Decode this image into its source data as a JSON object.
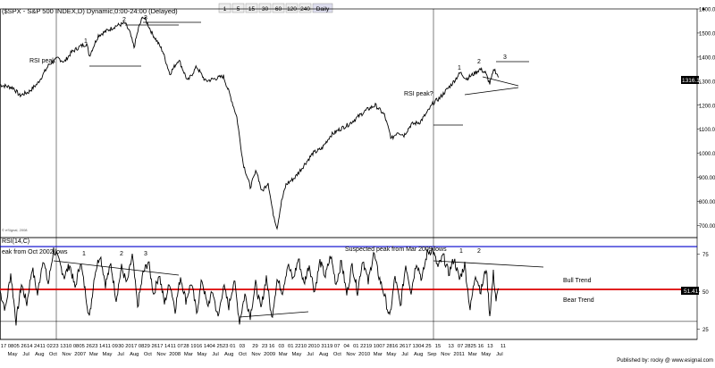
{
  "toolbar": {
    "symbol_text": "($SPX - S&P 500 INDEX,D) Dynamic,0:00-24:00 (Delayed)",
    "buttons": [
      "1",
      "5",
      "15",
      "30",
      "60",
      "120",
      "240",
      "Daily"
    ],
    "active_button": "Daily"
  },
  "watermark": "© eSignal, 2008",
  "footer": "Published by: rocky @ www.esignal.com",
  "rsi_label": "RSI(14,C)",
  "rsi_value_badge": "51.41",
  "price_badge": "1316.14",
  "annotations": {
    "rsi_peak_left": "RSI peak",
    "rsi_peak_right": "RSI peak?",
    "suspected_peak": "Suspected peak from Mar 2009 lows",
    "peak_from_2002": "eak from Oct 2002 lows",
    "bull_trend": "Bull Trend",
    "bear_trend": "Bear Trend",
    "wave_labels": [
      "1",
      "2",
      "3",
      "1",
      "2",
      "3"
    ],
    "rsi_wave_labels": [
      "1",
      "2",
      "3",
      "1",
      "2"
    ]
  },
  "colors": {
    "background": "#ffffff",
    "price_line": "#000000",
    "rsi_line": "#000000",
    "upper_band": "#0000cc",
    "mid_band": "#dd0000",
    "badge_bg": "#000000",
    "badge_text": "#ffffff"
  },
  "chart_data": [
    {
      "type": "line",
      "title": "$SPX - S&P 500 INDEX",
      "y_axis_position": "right",
      "ylim": [
        650,
        1600
      ],
      "y_ticks": [
        700,
        800,
        900,
        1000,
        1100,
        1200,
        1300,
        1400,
        1500,
        1600
      ],
      "y_tick_labels": [
        "700.00",
        "800.00",
        "900.00",
        "1000.00",
        "1100.00",
        "1200.00",
        "1300.00",
        "1400.00",
        "1500.00",
        "1600.00"
      ],
      "xlim": [
        0,
        780
      ],
      "points": [
        [
          0,
          1285
        ],
        [
          15,
          1272
        ],
        [
          22,
          1240
        ],
        [
          32,
          1255
        ],
        [
          42,
          1290
        ],
        [
          55,
          1370
        ],
        [
          65,
          1395
        ],
        [
          72,
          1380
        ],
        [
          80,
          1420
        ],
        [
          90,
          1445
        ],
        [
          97,
          1455
        ],
        [
          100,
          1405
        ],
        [
          110,
          1490
        ],
        [
          120,
          1510
        ],
        [
          130,
          1530
        ],
        [
          140,
          1540
        ],
        [
          145,
          1505
        ],
        [
          150,
          1440
        ],
        [
          155,
          1520
        ],
        [
          160,
          1570
        ],
        [
          165,
          1540
        ],
        [
          170,
          1500
        ],
        [
          175,
          1470
        ],
        [
          182,
          1425
        ],
        [
          190,
          1330
        ],
        [
          200,
          1390
        ],
        [
          210,
          1300
        ],
        [
          220,
          1360
        ],
        [
          230,
          1300
        ],
        [
          240,
          1310
        ],
        [
          250,
          1320
        ],
        [
          258,
          1235
        ],
        [
          265,
          1150
        ],
        [
          272,
          960
        ],
        [
          280,
          860
        ],
        [
          287,
          930
        ],
        [
          293,
          840
        ],
        [
          300,
          880
        ],
        [
          305,
          760
        ],
        [
          310,
          690
        ],
        [
          315,
          800
        ],
        [
          320,
          870
        ],
        [
          330,
          900
        ],
        [
          340,
          950
        ],
        [
          350,
          1000
        ],
        [
          360,
          1020
        ],
        [
          370,
          1075
        ],
        [
          380,
          1100
        ],
        [
          390,
          1120
        ],
        [
          400,
          1150
        ],
        [
          410,
          1180
        ],
        [
          420,
          1200
        ],
        [
          430,
          1160
        ],
        [
          438,
          1060
        ],
        [
          445,
          1090
        ],
        [
          452,
          1075
        ],
        [
          460,
          1120
        ],
        [
          470,
          1130
        ],
        [
          478,
          1170
        ],
        [
          485,
          1210
        ],
        [
          492,
          1230
        ],
        [
          500,
          1265
        ],
        [
          507,
          1295
        ],
        [
          515,
          1335
        ],
        [
          522,
          1310
        ],
        [
          530,
          1330
        ],
        [
          537,
          1350
        ],
        [
          543,
          1335
        ],
        [
          548,
          1290
        ],
        [
          553,
          1350
        ],
        [
          558,
          1316
        ]
      ],
      "x_tick_labels": [
        "17 08",
        "05 26",
        "14 24",
        "11 02",
        "23 13",
        "10 08",
        "05 26",
        "23 14",
        "11 09",
        "30 20",
        "17 08",
        "29 26",
        "17 14",
        "11 07",
        "28 19",
        "16 14",
        "04 25",
        "23 01",
        "03",
        "29",
        "23 16",
        "03",
        "01 22",
        "10 20",
        "10 31",
        "19 07",
        "04",
        "01 22",
        "19 10",
        "07 28",
        "16 26",
        "17 13",
        "04 25",
        "15",
        "13",
        "07 28",
        "25 16",
        "13",
        "11"
      ],
      "x_period_labels": [
        "May",
        "Jul",
        "Aug",
        "Oct",
        "Nov",
        "2007",
        "Mar",
        "May",
        "Jul",
        "Aug",
        "Oct",
        "Nov",
        "2008",
        "Mar",
        "May",
        "Jul",
        "Aug",
        "Oct",
        "Nov",
        "2009",
        "Mar",
        "May",
        "Jul",
        "Aug",
        "Oct",
        "Nov",
        "2010",
        "Mar",
        "May",
        "Jul",
        "Aug",
        "Sep",
        "Nov",
        "2011",
        "Mar",
        "May",
        "Jul"
      ]
    },
    {
      "type": "line",
      "title": "RSI(14,C)",
      "y_axis_position": "right",
      "ylim": [
        18,
        86
      ],
      "y_ticks": [
        25,
        50,
        75
      ],
      "y_tick_labels": [
        "25",
        "50",
        "75"
      ],
      "reference_lines": [
        80,
        51.41,
        30
      ],
      "xlim": [
        0,
        780
      ],
      "points": [
        [
          0,
          50
        ],
        [
          6,
          38
        ],
        [
          12,
          62
        ],
        [
          18,
          30
        ],
        [
          24,
          55
        ],
        [
          30,
          42
        ],
        [
          36,
          66
        ],
        [
          42,
          48
        ],
        [
          48,
          72
        ],
        [
          54,
          55
        ],
        [
          60,
          78
        ],
        [
          66,
          70
        ],
        [
          72,
          60
        ],
        [
          78,
          68
        ],
        [
          84,
          52
        ],
        [
          90,
          70
        ],
        [
          96,
          48
        ],
        [
          100,
          32
        ],
        [
          106,
          62
        ],
        [
          112,
          75
        ],
        [
          118,
          55
        ],
        [
          124,
          68
        ],
        [
          130,
          45
        ],
        [
          136,
          66
        ],
        [
          142,
          55
        ],
        [
          148,
          74
        ],
        [
          154,
          40
        ],
        [
          160,
          62
        ],
        [
          166,
          70
        ],
        [
          172,
          48
        ],
        [
          178,
          62
        ],
        [
          184,
          42
        ],
        [
          190,
          56
        ],
        [
          196,
          38
        ],
        [
          202,
          60
        ],
        [
          208,
          44
        ],
        [
          214,
          56
        ],
        [
          220,
          36
        ],
        [
          226,
          58
        ],
        [
          232,
          40
        ],
        [
          238,
          50
        ],
        [
          244,
          32
        ],
        [
          250,
          54
        ],
        [
          256,
          40
        ],
        [
          262,
          58
        ],
        [
          268,
          30
        ],
        [
          274,
          48
        ],
        [
          280,
          34
        ],
        [
          286,
          55
        ],
        [
          292,
          38
        ],
        [
          298,
          60
        ],
        [
          304,
          32
        ],
        [
          310,
          58
        ],
        [
          316,
          50
        ],
        [
          322,
          68
        ],
        [
          328,
          58
        ],
        [
          334,
          72
        ],
        [
          340,
          55
        ],
        [
          346,
          68
        ],
        [
          352,
          50
        ],
        [
          358,
          70
        ],
        [
          364,
          60
        ],
        [
          370,
          74
        ],
        [
          376,
          55
        ],
        [
          382,
          70
        ],
        [
          388,
          48
        ],
        [
          394,
          68
        ],
        [
          400,
          50
        ],
        [
          406,
          72
        ],
        [
          412,
          56
        ],
        [
          418,
          76
        ],
        [
          424,
          60
        ],
        [
          430,
          48
        ],
        [
          436,
          32
        ],
        [
          442,
          60
        ],
        [
          448,
          40
        ],
        [
          454,
          68
        ],
        [
          460,
          50
        ],
        [
          466,
          70
        ],
        [
          472,
          58
        ],
        [
          478,
          76
        ],
        [
          484,
          78
        ],
        [
          490,
          66
        ],
        [
          496,
          74
        ],
        [
          502,
          62
        ],
        [
          508,
          72
        ],
        [
          514,
          58
        ],
        [
          520,
          68
        ],
        [
          526,
          38
        ],
        [
          532,
          62
        ],
        [
          538,
          50
        ],
        [
          544,
          66
        ],
        [
          548,
          34
        ],
        [
          552,
          62
        ],
        [
          555,
          44
        ],
        [
          558,
          52
        ]
      ]
    }
  ]
}
